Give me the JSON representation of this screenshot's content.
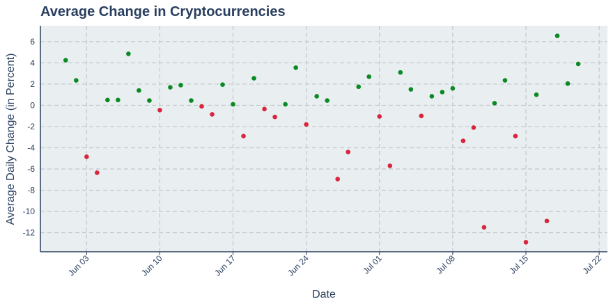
{
  "chart_data": {
    "type": "scatter",
    "title": "Average Change in Cryptocurrencies",
    "x_label": "Date",
    "y_label": "Average Daily Change (in Percent)",
    "x": [
      "06-01",
      "06-02",
      "06-03",
      "06-04",
      "06-05",
      "06-06",
      "06-07",
      "06-08",
      "06-09",
      "06-10",
      "06-11",
      "06-12",
      "06-13",
      "06-14",
      "06-15",
      "06-16",
      "06-17",
      "06-18",
      "06-19",
      "06-20",
      "06-21",
      "06-22",
      "06-23",
      "06-24",
      "06-25",
      "06-26",
      "06-27",
      "06-28",
      "06-29",
      "06-30",
      "07-01",
      "07-02",
      "07-03",
      "07-04",
      "07-05",
      "07-06",
      "07-07",
      "07-08",
      "07-09",
      "07-10",
      "07-11",
      "07-12",
      "07-13",
      "07-14",
      "07-15",
      "07-16",
      "07-17",
      "07-18",
      "07-19",
      "07-20"
    ],
    "values": [
      4.25,
      2.35,
      -4.85,
      -6.35,
      0.5,
      0.5,
      4.85,
      1.4,
      0.45,
      -0.45,
      1.7,
      1.9,
      0.45,
      -0.1,
      -0.85,
      1.95,
      0.1,
      -2.9,
      2.55,
      -0.35,
      -1.1,
      0.1,
      3.55,
      -1.8,
      0.85,
      0.45,
      -6.95,
      -4.4,
      1.75,
      2.7,
      -1.05,
      -5.7,
      3.1,
      1.5,
      -1.0,
      0.85,
      1.25,
      1.6,
      -3.35,
      -2.1,
      -11.5,
      0.2,
      2.35,
      -2.9,
      -12.9,
      1.0,
      -10.9,
      6.55,
      2.05,
      3.9
    ],
    "positive_color": "#0b8a24",
    "negative_color": "#d7263d",
    "xlim": [
      "05-29T14",
      "07-22T19"
    ],
    "xticks": [
      {
        "value": "06-03",
        "label": "Jun 03"
      },
      {
        "value": "06-10",
        "label": "Jun 10"
      },
      {
        "value": "06-17",
        "label": "Jun 17"
      },
      {
        "value": "06-24",
        "label": "Jun 24"
      },
      {
        "value": "07-01",
        "label": "Jul 01"
      },
      {
        "value": "07-08",
        "label": "Jul 08"
      },
      {
        "value": "07-15",
        "label": "Jul 15"
      },
      {
        "value": "07-22",
        "label": "Jul 22"
      }
    ],
    "ylim": [
      -13.8,
      7.5
    ],
    "yticks": [
      -12,
      -10,
      -8,
      -6,
      -4,
      -2,
      0,
      2,
      4,
      6
    ],
    "grid": true
  }
}
